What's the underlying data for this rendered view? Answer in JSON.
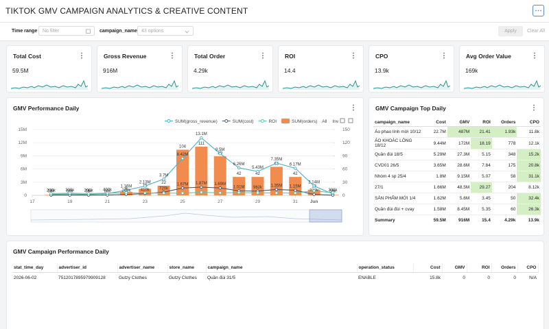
{
  "header": {
    "title": "TIKTOK GMV CAMPAIGN ANALYTICS & CREATIVE CONTENT"
  },
  "filters": {
    "time_range_label": "Time range",
    "time_range_value": "No filter",
    "campaign_label": "campaign_name",
    "campaign_value": "43 options",
    "apply": "Apply",
    "clear": "Clear All"
  },
  "kpis": [
    {
      "title": "Total Cost",
      "value": "59.5M"
    },
    {
      "title": "Gross Revenue",
      "value": "916M"
    },
    {
      "title": "Total Order",
      "value": "4.29k"
    },
    {
      "title": "ROI",
      "value": "14.4"
    },
    {
      "title": "CPO",
      "value": "13.9k"
    },
    {
      "title": "Avg Order Value",
      "value": "169k"
    }
  ],
  "chart_data": {
    "type": "combo",
    "title": "GMV Performance Daily",
    "x": [
      18,
      19,
      20,
      21,
      22,
      23,
      24,
      25,
      26,
      27,
      28,
      29,
      30,
      31,
      32,
      33
    ],
    "xlim": [
      17,
      33
    ],
    "xticks": [
      17,
      19,
      21,
      23,
      25,
      27,
      29,
      31,
      {
        "value": 32,
        "label": "Jun"
      }
    ],
    "ylim": [
      0,
      15000000
    ],
    "yticks": [
      0,
      {
        "value": 3000000,
        "label": "3M"
      },
      {
        "value": 6000000,
        "label": "6M"
      },
      {
        "value": 9000000,
        "label": "9M"
      },
      {
        "value": 12000000,
        "label": "12M"
      },
      {
        "value": 15000000,
        "label": "15M"
      }
    ],
    "y2lim": [
      0,
      150
    ],
    "y2ticks": [
      0,
      30,
      60,
      90,
      120,
      150
    ],
    "grid": true,
    "legend_controls": [
      "All",
      "Inv"
    ],
    "series": [
      {
        "name": "SUM(gross_revenue)",
        "type": "line",
        "color": "#45b0c8",
        "values": [
          200000,
          300000,
          200000,
          400000,
          1160000,
          2130000,
          3700000,
          8420000,
          13100000,
          9500000,
          6260000,
          5430000,
          7350000,
          6170000,
          2140000,
          300000
        ],
        "value_labels": [
          "200k",
          "300k",
          "200k",
          "400k",
          "1.16M",
          "2.13M",
          "3.7M",
          "8.42M",
          "13.1M",
          "9.5M",
          "6.26M",
          "5.43M",
          "7.35M",
          "6.17M",
          "2.14M",
          "300k"
        ]
      },
      {
        "name": "SUM(cost)",
        "type": "line",
        "color": "#4a5566",
        "values": [
          50000,
          60000,
          50000,
          80000,
          200000,
          410000,
          720000,
          1670000,
          1870000,
          1690000,
          1010000,
          962000,
          1350000,
          1150000,
          210000,
          50000
        ],
        "value_labels": [
          "50k",
          "60k",
          "50k",
          "80k",
          "200k",
          "410k",
          "720k",
          "1.67M",
          "1.87M",
          "1.69M",
          "1.01M",
          "962k",
          "1.35M",
          "1.15M",
          "210k",
          "50k"
        ]
      },
      {
        "name": "ROI",
        "type": "line",
        "color": "#5cc4a4",
        "axis": "y2",
        "values": [
          4,
          5,
          4,
          5,
          5.8,
          5.2,
          5.14,
          5.04,
          7.01,
          5.62,
          6.2,
          5.64,
          5.44,
          5.36,
          10.3,
          6
        ]
      },
      {
        "name": "SUM(orders)",
        "type": "bar",
        "color": "#f28c4e",
        "axis": "y2",
        "values": [
          1,
          1,
          1,
          2,
          8,
          15,
          22,
          104,
          111,
          89,
          42,
          42,
          65,
          42,
          13,
          1
        ]
      }
    ]
  },
  "top_table": {
    "title": "GMV Campaign Top Daily",
    "columns": [
      "campaign_name",
      "Cost",
      "GMV",
      "ROI",
      "Orders",
      "CPO"
    ],
    "rows": [
      [
        "Áo phao lính mới 10/12",
        "22.7M",
        "487M",
        "21.41",
        "1.93k",
        "11.8k"
      ],
      [
        "ÁO KHOÁC LÔNG 18/12",
        "9.44M",
        "172M",
        "18.19",
        "778",
        "12.1k"
      ],
      [
        "Quần đùi 18/5",
        "5.29M",
        "27.3M",
        "5.15",
        "348",
        "15.2k"
      ],
      [
        "CVD01 26/5",
        "3.65M",
        "28.6M",
        "7.84",
        "175",
        "20.8k"
      ],
      [
        "Nhóm 4 sp 25/4",
        "1.8M",
        "9.15M",
        "5.07",
        "58",
        "31.1k"
      ],
      [
        "27/1",
        "1.66M",
        "48.5M",
        "29.27",
        "204",
        "8.12k"
      ],
      [
        "SẢN PHẨM MỚI 1/4",
        "1.62M",
        "5.6M",
        "3.45",
        "50",
        "32.4k"
      ],
      [
        "Quần đùi đùi + cvay",
        "1.58M",
        "8.45M",
        "5.35",
        "60",
        "26.3k"
      ]
    ],
    "summary": [
      "Summary",
      "59.5M",
      "916M",
      "15.4",
      "4.29k",
      "13.9k"
    ]
  },
  "daily_table": {
    "title": "GMV Campaign Performance Daily",
    "columns": [
      "stat_time_day",
      "advertiser_id",
      "advertiser_name",
      "store_name",
      "campaign_name",
      "operation_status",
      "Cost",
      "GMV",
      "ROI",
      "Orders",
      "CPO"
    ],
    "rows": [
      [
        "2026-06-02",
        "7512017895979909128",
        "Gutzy Clothes",
        "Gutzy Clothes",
        "Quần đùi 31/5",
        "ENABLE",
        "15.8k",
        "0",
        "0",
        "0",
        "N/A"
      ]
    ]
  }
}
